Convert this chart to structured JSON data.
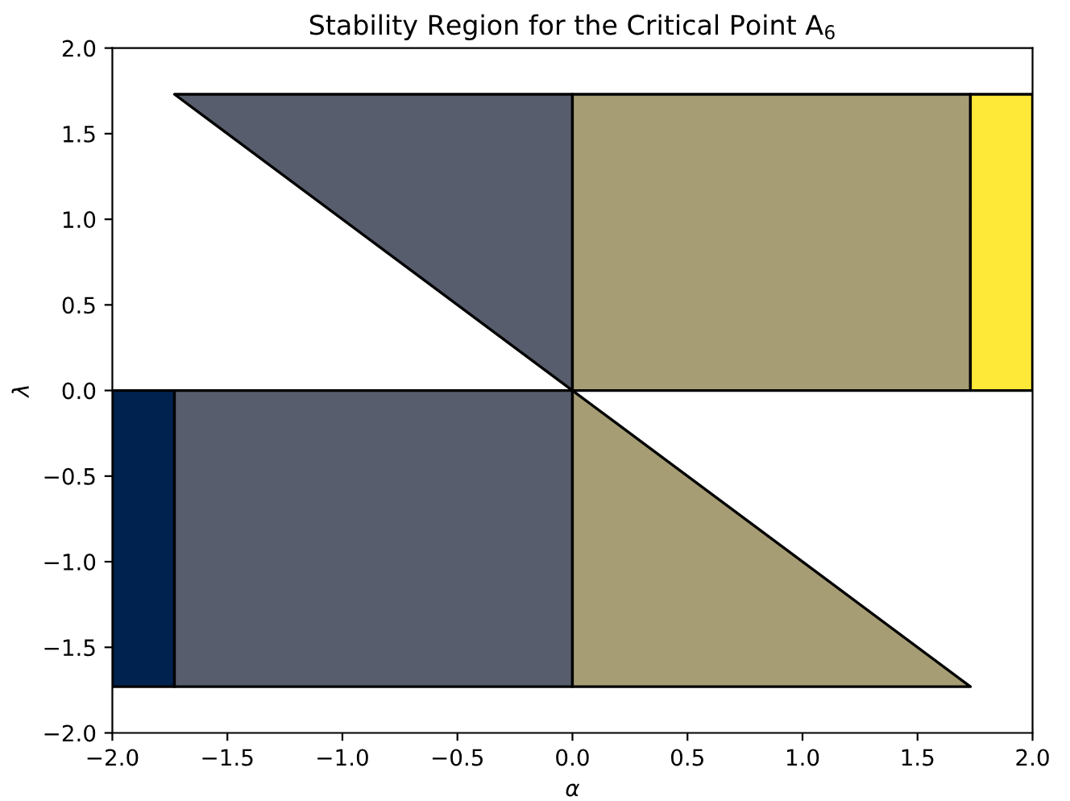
{
  "chart_data": {
    "type": "area",
    "title": "Stability Region for the Critical Point A$_{6}$",
    "xlabel": "α",
    "ylabel": "λ",
    "xlim": [
      -2.0,
      2.0
    ],
    "ylim": [
      -2.0,
      2.0
    ],
    "xticks": [
      {
        "value": -2.0,
        "label": "−2.0"
      },
      {
        "value": -1.5,
        "label": "−1.5"
      },
      {
        "value": -1.0,
        "label": "−1.0"
      },
      {
        "value": -0.5,
        "label": "−0.5"
      },
      {
        "value": 0.0,
        "label": "0.0"
      },
      {
        "value": 0.5,
        "label": "0.5"
      },
      {
        "value": 1.0,
        "label": "1.0"
      },
      {
        "value": 1.5,
        "label": "1.5"
      },
      {
        "value": 2.0,
        "label": "2.0"
      }
    ],
    "yticks": [
      {
        "value": -2.0,
        "label": "−2.0"
      },
      {
        "value": -1.5,
        "label": "−1.5"
      },
      {
        "value": -1.0,
        "label": "−1.0"
      },
      {
        "value": -0.5,
        "label": "−0.5"
      },
      {
        "value": 0.0,
        "label": "0.0"
      },
      {
        "value": 0.5,
        "label": "0.5"
      },
      {
        "value": 1.0,
        "label": "1.0"
      },
      {
        "value": 1.5,
        "label": "1.5"
      },
      {
        "value": 2.0,
        "label": "2.0"
      }
    ],
    "series": [
      {
        "color": "#00224e",
        "x": [
          -2.0,
          -1.73,
          -1.73,
          -2.0
        ],
        "values": [
          -1.73,
          -1.73,
          0.0,
          0.0
        ]
      },
      {
        "color": "#575d6d",
        "x": [
          -1.73,
          0.0,
          0.0,
          -1.73
        ],
        "values": [
          -1.73,
          -1.73,
          0.0,
          0.0
        ]
      },
      {
        "color": "#575d6d",
        "x": [
          -1.73,
          0.0,
          0.0
        ],
        "values": [
          1.73,
          1.73,
          0.0
        ]
      },
      {
        "color": "#a69d75",
        "x": [
          0.0,
          1.73,
          1.73,
          0.0
        ],
        "values": [
          0.0,
          0.0,
          1.73,
          1.73
        ]
      },
      {
        "color": "#a69d75",
        "x": [
          0.0,
          1.73,
          0.0
        ],
        "values": [
          0.0,
          -1.73,
          -1.73
        ]
      },
      {
        "color": "#fee838",
        "x": [
          1.73,
          2.0,
          2.0,
          1.73
        ],
        "values": [
          0.0,
          0.0,
          1.73,
          1.73
        ]
      }
    ]
  }
}
